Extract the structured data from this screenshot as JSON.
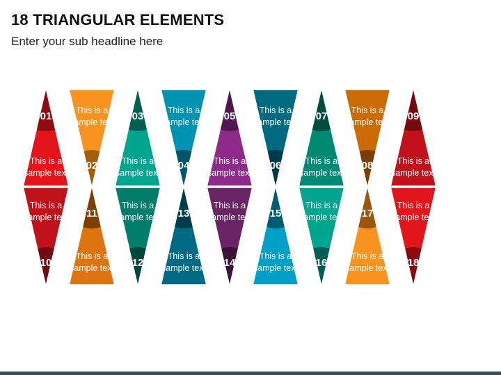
{
  "header": {
    "title": "18 TRIANGULAR ELEMENTS",
    "subtitle": "Enter your sub headline here"
  },
  "diagram": {
    "elements": [
      {
        "number": "01",
        "text": [
          "This is a",
          "sample text"
        ],
        "color": "#e3151b",
        "dark": "#8f0b10"
      },
      {
        "number": "02",
        "text": [
          "This is a",
          "sample text"
        ],
        "color": "#f7931e",
        "dark": "#a45d0d"
      },
      {
        "number": "03",
        "text": [
          "This is a",
          "sample text"
        ],
        "color": "#00a58e",
        "dark": "#005f52"
      },
      {
        "number": "04",
        "text": [
          "This is a",
          "sample text"
        ],
        "color": "#0092b3",
        "dark": "#005668"
      },
      {
        "number": "05",
        "text": [
          "This is a",
          "sample text"
        ],
        "color": "#8e2a8a",
        "dark": "#511650"
      },
      {
        "number": "06",
        "text": [
          "This is a",
          "sample text"
        ],
        "color": "#006b80",
        "dark": "#003b47"
      },
      {
        "number": "07",
        "text": [
          "This is a",
          "sample text"
        ],
        "color": "#008a73",
        "dark": "#004d40"
      },
      {
        "number": "08",
        "text": [
          "This is a",
          "sample text"
        ],
        "color": "#cc6a06",
        "dark": "#7a3e02"
      },
      {
        "number": "09",
        "text": [
          "This is a",
          "sample text"
        ],
        "color": "#c1121c",
        "dark": "#74090f"
      },
      {
        "number": "10",
        "text": [
          "This is a",
          "sample text"
        ],
        "color": "#c1121c",
        "dark": "#74090f"
      },
      {
        "number": "11",
        "text": [
          "This is a",
          "sample text"
        ],
        "color": "#dd7410",
        "dark": "#7d3f04"
      },
      {
        "number": "12",
        "text": [
          "This is a",
          "sample text"
        ],
        "color": "#007d6b",
        "dark": "#00463c"
      },
      {
        "number": "13",
        "text": [
          "This is a",
          "sample text"
        ],
        "color": "#006a85",
        "dark": "#003c4c"
      },
      {
        "number": "14",
        "text": [
          "This is a",
          "sample text"
        ],
        "color": "#6a2466",
        "dark": "#3c123a"
      },
      {
        "number": "15",
        "text": [
          "This is a",
          "sample text"
        ],
        "color": "#00a0c6",
        "dark": "#005c72"
      },
      {
        "number": "16",
        "text": [
          "This is a",
          "sample text"
        ],
        "color": "#00a58e",
        "dark": "#005f52"
      },
      {
        "number": "17",
        "text": [
          "This is a",
          "sample text"
        ],
        "color": "#f7931e",
        "dark": "#9a560b"
      },
      {
        "number": "18",
        "text": [
          "This is a",
          "sample text"
        ],
        "color": "#e3151b",
        "dark": "#8a0a0f"
      }
    ]
  }
}
